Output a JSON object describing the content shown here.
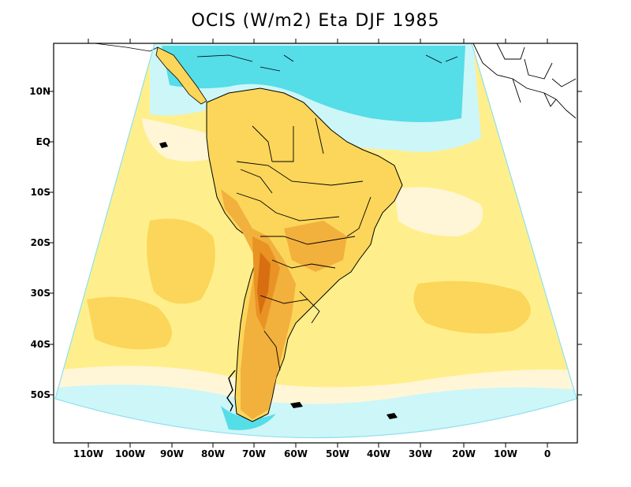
{
  "title": "OCIS (W/m2) Eta DJF 1985",
  "axes": {
    "lat_labels": [
      "10N",
      "EQ",
      "10S",
      "20S",
      "30S",
      "40S",
      "50S"
    ],
    "lon_labels": [
      "110W",
      "100W",
      "90W",
      "80W",
      "70W",
      "60W",
      "50W",
      "40W",
      "30W",
      "20W",
      "10W",
      "0"
    ]
  },
  "colors": {
    "cyan_dark": "#55dde8",
    "cyan_light": "#cdf6f8",
    "cream": "#fff6d8",
    "yellow_light": "#ffef8c",
    "yellow": "#fbd65a",
    "orange_light": "#f2b03c",
    "orange": "#e89324",
    "orange_dark": "#d86e12"
  }
}
